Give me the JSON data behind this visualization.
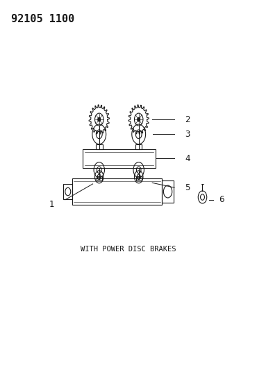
{
  "title": "92105 1100",
  "subtitle": "WITH POWER DISC BRAKES",
  "background_color": "#ffffff",
  "line_color": "#1a1a1a",
  "title_fontsize": 11,
  "subtitle_fontsize": 7.5,
  "label_fontsize": 8.5,
  "fig_width": 3.7,
  "fig_height": 5.33,
  "dpi": 100
}
